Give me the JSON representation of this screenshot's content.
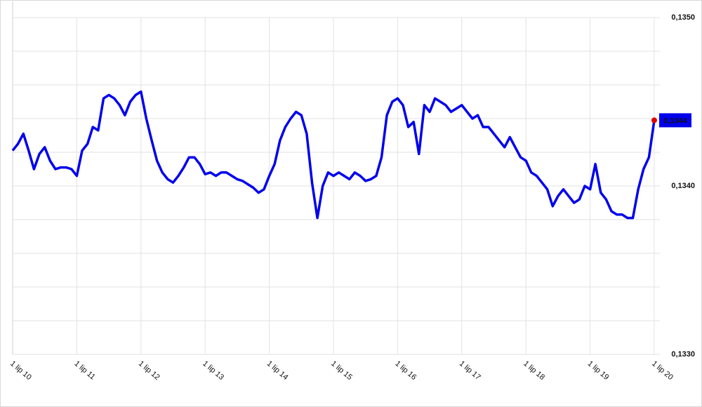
{
  "chart_data": {
    "type": "line",
    "x": [
      2010.5,
      2010.583,
      2010.667,
      2010.75,
      2010.833,
      2010.917,
      2011,
      2011.083,
      2011.167,
      2011.25,
      2011.333,
      2011.417,
      2011.5,
      2011.583,
      2011.667,
      2011.75,
      2011.833,
      2011.917,
      2012,
      2012.083,
      2012.167,
      2012.25,
      2012.333,
      2012.417,
      2012.5,
      2012.583,
      2012.667,
      2012.75,
      2012.833,
      2012.917,
      2013,
      2013.083,
      2013.167,
      2013.25,
      2013.333,
      2013.417,
      2013.5,
      2013.583,
      2013.667,
      2013.75,
      2013.833,
      2013.917,
      2014,
      2014.083,
      2014.167,
      2014.25,
      2014.333,
      2014.417,
      2014.5,
      2014.583,
      2014.667,
      2014.75,
      2014.833,
      2014.917,
      2015,
      2015.083,
      2015.167,
      2015.25,
      2015.333,
      2015.417,
      2015.5,
      2015.583,
      2015.667,
      2015.75,
      2015.833,
      2015.917,
      2016,
      2016.083,
      2016.167,
      2016.25,
      2016.333,
      2016.417,
      2016.5,
      2016.583,
      2016.667,
      2016.75,
      2016.833,
      2016.917,
      2017,
      2017.083,
      2017.167,
      2017.25,
      2017.333,
      2017.417,
      2017.5,
      2017.583,
      2017.667,
      2017.75,
      2017.833,
      2017.917,
      2018,
      2018.083,
      2018.167,
      2018.25,
      2018.333,
      2018.417,
      2018.5,
      2018.583,
      2018.667,
      2018.75,
      2018.833,
      2018.917,
      2019,
      2019.083,
      2019.167,
      2019.25,
      2019.333,
      2019.417,
      2019.5,
      2019.583,
      2019.667,
      2019.75,
      2019.833,
      2019.917,
      2020,
      2020.083,
      2020.167,
      2020.25,
      2020.333,
      2020.417,
      2020.5
    ],
    "series": [
      {
        "color": "#0000ee",
        "values": [
          0.13421,
          0.13425,
          0.13431,
          0.13421,
          0.1341,
          0.13419,
          0.13423,
          0.13415,
          0.1341,
          0.13411,
          0.13411,
          0.1341,
          0.13406,
          0.13421,
          0.13425,
          0.13435,
          0.13433,
          0.13452,
          0.13454,
          0.13452,
          0.13448,
          0.13442,
          0.1345,
          0.13454,
          0.13456,
          0.1344,
          0.13427,
          0.13415,
          0.13408,
          0.13404,
          0.13402,
          0.13406,
          0.13411,
          0.13417,
          0.13417,
          0.13413,
          0.13407,
          0.13408,
          0.13406,
          0.13408,
          0.13408,
          0.13406,
          0.13404,
          0.13403,
          0.13401,
          0.13399,
          0.13396,
          0.13398,
          0.13406,
          0.13413,
          0.13427,
          0.13435,
          0.1344,
          0.13444,
          0.13442,
          0.13431,
          0.13402,
          0.13381,
          0.134,
          0.13408,
          0.13406,
          0.13408,
          0.13406,
          0.13404,
          0.13408,
          0.13406,
          0.13403,
          0.13404,
          0.13406,
          0.13417,
          0.13442,
          0.1345,
          0.13452,
          0.13448,
          0.13435,
          0.13438,
          0.13419,
          0.13448,
          0.13444,
          0.13452,
          0.1345,
          0.13448,
          0.13444,
          0.13446,
          0.13448,
          0.13444,
          0.1344,
          0.13442,
          0.13435,
          0.13435,
          0.13431,
          0.13427,
          0.13423,
          0.13429,
          0.13423,
          0.13417,
          0.13415,
          0.13408,
          0.13406,
          0.13402,
          0.13398,
          0.13388,
          0.13394,
          0.13398,
          0.13394,
          0.1339,
          0.13392,
          0.134,
          0.13398,
          0.13413,
          0.13396,
          0.13392,
          0.13385,
          0.13383,
          0.13383,
          0.13381,
          0.13381,
          0.13398,
          0.1341,
          0.13417,
          0.13439
        ]
      }
    ],
    "xlim": [
      2010.5,
      2020.53
    ],
    "xticks": [
      {
        "value": 2010.5,
        "label": "1 lip 10"
      },
      {
        "value": 2011.5,
        "label": "1 lip 11"
      },
      {
        "value": 2012.5,
        "label": "1 lip 12"
      },
      {
        "value": 2013.5,
        "label": "1 lip 13"
      },
      {
        "value": 2014.5,
        "label": "1 lip 14"
      },
      {
        "value": 2015.5,
        "label": "1 lip 15"
      },
      {
        "value": 2016.5,
        "label": "1 lip 16"
      },
      {
        "value": 2017.5,
        "label": "1 lip 17"
      },
      {
        "value": 2018.5,
        "label": "1 lip 18"
      },
      {
        "value": 2019.5,
        "label": "1 lip 19"
      },
      {
        "value": 2020.5,
        "label": "1 lip 20"
      }
    ],
    "ylim": [
      0.133,
      0.135
    ],
    "yticks": [
      {
        "value": 0.135,
        "label": "0,1350"
      },
      {
        "value": 0.134,
        "label": "0,1340"
      },
      {
        "value": 0.133,
        "label": "0,1330"
      }
    ],
    "ygrid": [
      0.1348,
      0.1346,
      0.1344,
      0.1342,
      0.1338,
      0.1336,
      0.1334,
      0.1332
    ],
    "grid": true,
    "last_value_label": "0,1344",
    "last_marker_color": "#e00000"
  }
}
